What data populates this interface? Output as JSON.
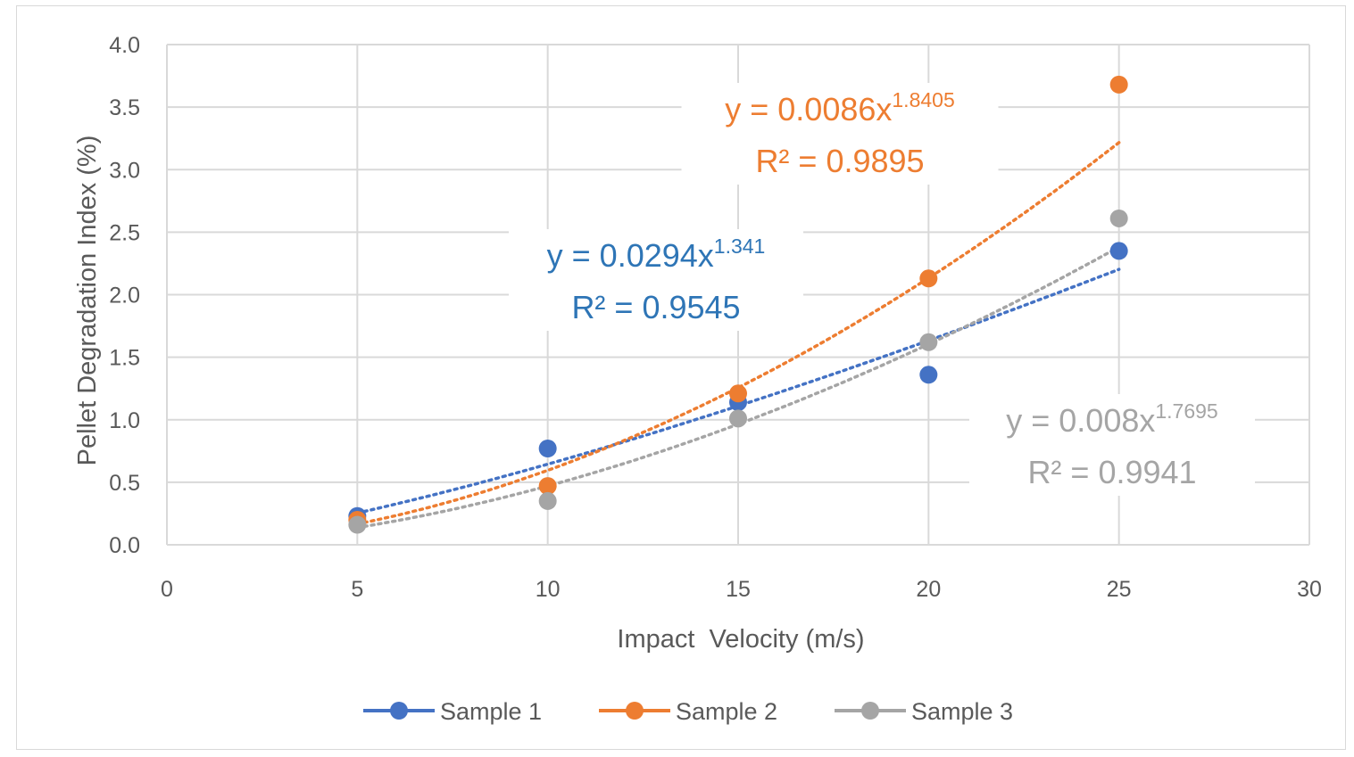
{
  "chart_data": {
    "type": "scatter",
    "xlabel": "Impact  Velocity (m/s)",
    "ylabel": "Pellet Degradation Index (%)",
    "xlim": [
      0,
      30
    ],
    "ylim": [
      0,
      4.0
    ],
    "xticks": [
      "0",
      "5",
      "10",
      "15",
      "20",
      "25",
      "30"
    ],
    "yticks": [
      "0.0",
      "0.5",
      "1.0",
      "1.5",
      "2.0",
      "2.5",
      "3.0",
      "3.5",
      "4.0"
    ],
    "grid": true,
    "legend_position": "bottom",
    "series": [
      {
        "name": "Sample 1",
        "color": "#4472C4",
        "x": [
          5,
          10,
          15,
          20,
          25
        ],
        "y": [
          0.23,
          0.77,
          1.14,
          1.36,
          2.35
        ],
        "trendline": {
          "type": "power",
          "a": 0.0294,
          "b": 1.341,
          "equation": "y = 0.0294x",
          "exponent": "1.341",
          "r2": "R² = 0.9545",
          "label_color": "#2E75B6"
        }
      },
      {
        "name": "Sample 2",
        "color": "#ED7D31",
        "x": [
          5,
          10,
          15,
          20,
          25
        ],
        "y": [
          0.2,
          0.47,
          1.21,
          2.13,
          3.68
        ],
        "trendline": {
          "type": "power",
          "a": 0.0086,
          "b": 1.8405,
          "equation": "y = 0.0086x",
          "exponent": "1.8405",
          "r2": "R² = 0.9895",
          "label_color": "#ED7D31"
        }
      },
      {
        "name": "Sample 3",
        "color": "#A5A5A5",
        "x": [
          5,
          10,
          15,
          20,
          25
        ],
        "y": [
          0.16,
          0.35,
          1.01,
          1.62,
          2.61
        ],
        "trendline": {
          "type": "power",
          "a": 0.008,
          "b": 1.7695,
          "equation": "y = 0.008x",
          "exponent": "1.7695",
          "r2": "R² = 0.9941",
          "label_color": "#A5A5A5"
        }
      }
    ]
  }
}
